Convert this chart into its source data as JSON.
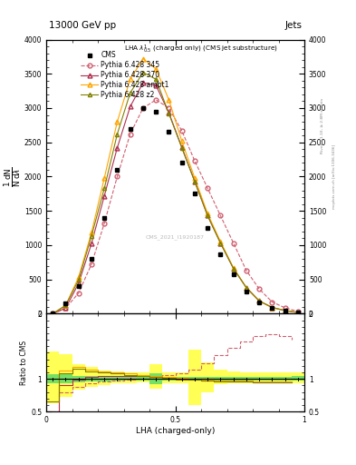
{
  "title_left": "13000 GeV pp",
  "title_right": "Jets",
  "xlabel": "LHA (charged-only)",
  "ylabel_ratio": "Ratio to CMS",
  "watermark": "CMS_2021_I1920187",
  "rivet_label": "Rivet 3.1.10, ≥ 2.8M events",
  "mcplots_label": "mcplots.cern.ch [arXiv:1306.3436]",
  "x_bins": [
    0.0,
    0.05,
    0.1,
    0.15,
    0.2,
    0.25,
    0.3,
    0.35,
    0.4,
    0.45,
    0.5,
    0.55,
    0.6,
    0.65,
    0.7,
    0.75,
    0.8,
    0.85,
    0.9,
    0.95,
    1.0
  ],
  "cms_y": [
    0,
    150,
    400,
    800,
    1400,
    2100,
    2700,
    3000,
    2950,
    2650,
    2200,
    1750,
    1250,
    870,
    570,
    320,
    170,
    85,
    42,
    15
  ],
  "p345_y": [
    0,
    80,
    300,
    720,
    1320,
    2000,
    2620,
    3000,
    3120,
    3000,
    2670,
    2230,
    1830,
    1430,
    1030,
    630,
    360,
    170,
    85,
    32
  ],
  "p370_y": [
    0,
    80,
    440,
    1020,
    1720,
    2420,
    3020,
    3370,
    3330,
    2930,
    2430,
    1930,
    1430,
    1030,
    660,
    380,
    185,
    90,
    45,
    16
  ],
  "pambt1_y": [
    0,
    120,
    530,
    1180,
    1980,
    2800,
    3420,
    3720,
    3570,
    3120,
    2520,
    1980,
    1460,
    1050,
    670,
    380,
    185,
    90,
    45,
    16
  ],
  "pz2_y": [
    0,
    120,
    490,
    1130,
    1830,
    2620,
    3220,
    3520,
    3420,
    2920,
    2420,
    1930,
    1430,
    1030,
    660,
    380,
    185,
    90,
    45,
    16
  ],
  "ratio_p345_lo": [
    0.4,
    0.7,
    0.82,
    0.88,
    0.92,
    0.94,
    0.95,
    0.96,
    0.99,
    1.02,
    1.04,
    1.1,
    1.18,
    1.28,
    1.38,
    1.48,
    1.55,
    1.58,
    1.55,
    1.5
  ],
  "ratio_p345_hi": [
    0.6,
    0.9,
    0.94,
    0.98,
    1.0,
    1.02,
    1.03,
    1.04,
    1.07,
    1.1,
    1.12,
    1.18,
    1.3,
    1.44,
    1.56,
    1.68,
    1.75,
    1.78,
    1.75,
    1.7
  ],
  "ratio_p370_lo": [
    0.4,
    0.82,
    0.92,
    0.97,
    0.99,
    1.0,
    1.0,
    1.0,
    1.0,
    0.99,
    0.97,
    0.96,
    0.95,
    0.94,
    0.93,
    0.93,
    0.92,
    0.92,
    0.92,
    0.92
  ],
  "ratio_p370_hi": [
    0.6,
    0.98,
    1.06,
    1.09,
    1.11,
    1.1,
    1.09,
    1.08,
    1.07,
    1.05,
    1.03,
    1.02,
    1.01,
    1.0,
    0.99,
    0.99,
    0.98,
    0.98,
    0.98,
    0.98
  ],
  "ratio_pambt1_lo": [
    0.5,
    0.98,
    1.08,
    1.05,
    1.05,
    1.04,
    1.03,
    1.02,
    1.01,
    1.0,
    0.99,
    0.98,
    0.97,
    0.96,
    0.95,
    0.95,
    0.94,
    0.94,
    0.94,
    0.94
  ],
  "ratio_pambt1_hi": [
    0.8,
    1.28,
    1.3,
    1.23,
    1.19,
    1.16,
    1.13,
    1.1,
    1.09,
    1.06,
    1.03,
    1.02,
    1.01,
    1.0,
    0.99,
    0.99,
    0.98,
    0.98,
    0.98,
    0.98
  ],
  "ratio_pz2_lo": [
    0.5,
    0.95,
    1.05,
    1.04,
    1.04,
    1.03,
    1.02,
    1.01,
    1.0,
    0.99,
    0.98,
    0.97,
    0.96,
    0.95,
    0.94,
    0.94,
    0.93,
    0.93,
    0.93,
    0.93
  ],
  "ratio_pz2_hi": [
    0.8,
    1.22,
    1.27,
    1.2,
    1.16,
    1.13,
    1.11,
    1.08,
    1.06,
    1.03,
    1.01,
    1.0,
    0.99,
    0.98,
    0.98,
    0.98,
    0.97,
    0.97,
    0.97,
    0.97
  ],
  "green_band_lo": [
    0.93,
    0.93,
    0.95,
    0.96,
    0.96,
    0.97,
    0.97,
    0.97,
    0.92,
    0.97,
    0.97,
    0.97,
    0.97,
    0.97,
    0.97,
    0.97,
    0.97,
    0.97,
    0.97,
    0.97
  ],
  "green_band_hi": [
    1.07,
    1.07,
    1.05,
    1.04,
    1.04,
    1.03,
    1.03,
    1.03,
    1.08,
    1.03,
    1.03,
    1.03,
    1.03,
    1.03,
    1.03,
    1.03,
    1.03,
    1.03,
    1.03,
    1.05
  ],
  "yellow_band_lo": [
    0.62,
    0.72,
    0.84,
    0.88,
    0.91,
    0.93,
    0.94,
    0.95,
    0.85,
    0.94,
    0.94,
    0.6,
    0.8,
    0.92,
    0.93,
    0.94,
    0.94,
    0.94,
    0.94,
    0.94
  ],
  "yellow_band_hi": [
    1.42,
    1.38,
    1.22,
    1.18,
    1.13,
    1.11,
    1.1,
    1.1,
    1.22,
    1.1,
    1.1,
    1.45,
    1.26,
    1.14,
    1.12,
    1.1,
    1.1,
    1.1,
    1.1,
    1.1
  ],
  "color_cms": "#000000",
  "color_p345": "#d06070",
  "color_p370": "#b03050",
  "color_pambt1": "#ffa500",
  "color_pz2": "#808000",
  "ylim_main": [
    0,
    4000
  ],
  "ylim_ratio": [
    0.5,
    2.0
  ],
  "xlim": [
    0.0,
    1.0
  ],
  "yticks_main": [
    0,
    500,
    1000,
    1500,
    2000,
    2500,
    3000,
    3500,
    4000
  ],
  "ytick_labels_main": [
    "0",
    "500",
    "1000",
    "1500",
    "2000",
    "2500",
    "3000",
    "3500",
    "4000"
  ],
  "yticks_ratio": [
    0.5,
    1.0,
    2.0
  ],
  "ytick_labels_ratio": [
    "0.5",
    "1",
    "2"
  ],
  "xticks": [
    0.0,
    0.5,
    1.0
  ],
  "xtick_labels": [
    "0",
    "0.5",
    "1"
  ]
}
